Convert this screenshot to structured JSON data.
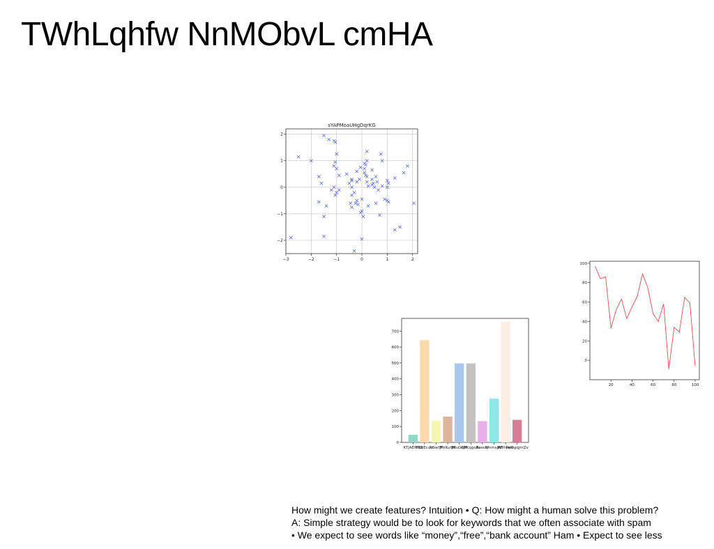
{
  "slide": {
    "title": "TWhLqhfw NnMObvL cmHA",
    "caption_lines": [
      "How might we create features? Intuition • Q: How might a human solve this problem?",
      "A: Simple strategy would be to look for keywords that we often associate with spam",
      "• We expect to see words like “money”,“free”,“bank account” Ham • Expect to see less"
    ]
  },
  "chart_data": [
    {
      "type": "scatter",
      "title": "sYAPMoaUHgDqrKG",
      "marker": "x",
      "color": "#5b6ee1",
      "grid": true,
      "xlim": [
        -3,
        2.2
      ],
      "ylim": [
        -2.5,
        2.2
      ],
      "xticks": [
        -3,
        -2,
        -1,
        0,
        1,
        2
      ],
      "yticks": [
        -2,
        -1,
        0,
        1,
        2
      ],
      "xtick_labels": [
        "−3",
        "−2",
        "−1",
        "0",
        "1",
        "2"
      ],
      "ytick_labels": [
        "−2",
        "−1",
        "0",
        "1",
        "2"
      ],
      "points": [
        [
          -2.5,
          1.15
        ],
        [
          -2.0,
          1.0
        ],
        [
          -2.8,
          -1.9
        ],
        [
          -1.7,
          0.4
        ],
        [
          -1.6,
          0.15
        ],
        [
          -1.7,
          -0.55
        ],
        [
          -1.5,
          -1.1
        ],
        [
          -1.5,
          -1.85
        ],
        [
          -1.4,
          -0.7
        ],
        [
          -1.5,
          1.95
        ],
        [
          -1.3,
          1.8
        ],
        [
          -1.1,
          1.75
        ],
        [
          -1.05,
          1.7
        ],
        [
          -1.0,
          1.25
        ],
        [
          -1.05,
          0.95
        ],
        [
          -1.1,
          0.8
        ],
        [
          -1.0,
          0.7
        ],
        [
          -0.9,
          0.45
        ],
        [
          -1.2,
          -0.1
        ],
        [
          -1.1,
          0.0
        ],
        [
          -1.0,
          -0.2
        ],
        [
          -1.05,
          -0.3
        ],
        [
          -0.9,
          -0.1
        ],
        [
          -0.6,
          0.5
        ],
        [
          -0.5,
          0.15
        ],
        [
          -0.4,
          0.3
        ],
        [
          -0.4,
          0.25
        ],
        [
          -0.4,
          0.0
        ],
        [
          -0.3,
          -0.2
        ],
        [
          -0.4,
          -0.3
        ],
        [
          -0.45,
          -0.6
        ],
        [
          -0.4,
          -0.75
        ],
        [
          -0.2,
          0.2
        ],
        [
          -0.2,
          -0.5
        ],
        [
          -0.25,
          -0.6
        ],
        [
          -0.15,
          -0.65
        ],
        [
          -0.2,
          0.6
        ],
        [
          -0.1,
          0.3
        ],
        [
          -0.05,
          0.75
        ],
        [
          0.1,
          0.9
        ],
        [
          0.1,
          0.7
        ],
        [
          0.1,
          0.55
        ],
        [
          0.15,
          0.45
        ],
        [
          0.2,
          0.4
        ],
        [
          0.2,
          0.2
        ],
        [
          0.25,
          0.05
        ],
        [
          0.15,
          0.85
        ],
        [
          0.2,
          1.0
        ],
        [
          0.2,
          1.35
        ],
        [
          0.0,
          -0.45
        ],
        [
          0.0,
          -0.9
        ],
        [
          -0.05,
          -0.95
        ],
        [
          0.05,
          -1.1
        ],
        [
          -0.3,
          -2.4
        ],
        [
          0.0,
          -1.95
        ],
        [
          0.25,
          -0.7
        ],
        [
          0.4,
          0.3
        ],
        [
          0.45,
          0.15
        ],
        [
          0.5,
          0.0
        ],
        [
          0.4,
          0.1
        ],
        [
          0.4,
          0.65
        ],
        [
          0.55,
          0.4
        ],
        [
          0.6,
          0.2
        ],
        [
          0.65,
          -0.1
        ],
        [
          0.75,
          1.25
        ],
        [
          0.8,
          1.0
        ],
        [
          0.8,
          0.05
        ],
        [
          1.0,
          0.25
        ],
        [
          1.05,
          0.15
        ],
        [
          1.0,
          0.0
        ],
        [
          1.0,
          -0.5
        ],
        [
          1.05,
          -0.55
        ],
        [
          0.7,
          -1.05
        ],
        [
          0.9,
          -0.45
        ],
        [
          1.3,
          0.35
        ],
        [
          1.3,
          -1.6
        ],
        [
          1.5,
          -1.5
        ],
        [
          1.65,
          0.55
        ],
        [
          1.8,
          0.8
        ],
        [
          2.05,
          -0.6
        ],
        [
          0.55,
          -0.6
        ]
      ]
    },
    {
      "type": "line",
      "color": "#e84c4c",
      "grid": false,
      "xlim": [
        0,
        104
      ],
      "ylim": [
        -20,
        102
      ],
      "xticks": [
        20,
        40,
        60,
        80,
        100
      ],
      "yticks": [
        0,
        20,
        40,
        60,
        80,
        100
      ],
      "x": [
        5,
        10,
        15,
        20,
        25,
        30,
        35,
        40,
        45,
        50,
        55,
        60,
        65,
        70,
        75,
        80,
        85,
        90,
        95,
        100
      ],
      "y": [
        97,
        84,
        86,
        33,
        52,
        63,
        43,
        55,
        66,
        89,
        75,
        48,
        40,
        58,
        -9,
        34,
        29,
        65,
        59,
        -6
      ]
    },
    {
      "type": "bar",
      "grid": false,
      "ylim": [
        0,
        780
      ],
      "yticks": [
        0,
        100,
        200,
        300,
        400,
        500,
        600,
        700
      ],
      "categories": [
        "KTJAEHNS",
        "HSBEcusf",
        "RGwfjF",
        "MkKuHft",
        "JMuGkJR",
        "OPKqgoAc",
        "BsesW",
        "kmmsjAF",
        "BWhlwie",
        "ReOgqjmZv"
      ],
      "values": [
        48,
        643,
        135,
        162,
        497,
        497,
        134,
        275,
        758,
        142
      ],
      "colors": [
        "#8fd8c4",
        "#fdd9ad",
        "#f7f6b1",
        "#ddb49c",
        "#a9c6ec",
        "#c4c1c0",
        "#eaaee8",
        "#8ce7e7",
        "#fbeee4",
        "#d77d97"
      ]
    }
  ]
}
